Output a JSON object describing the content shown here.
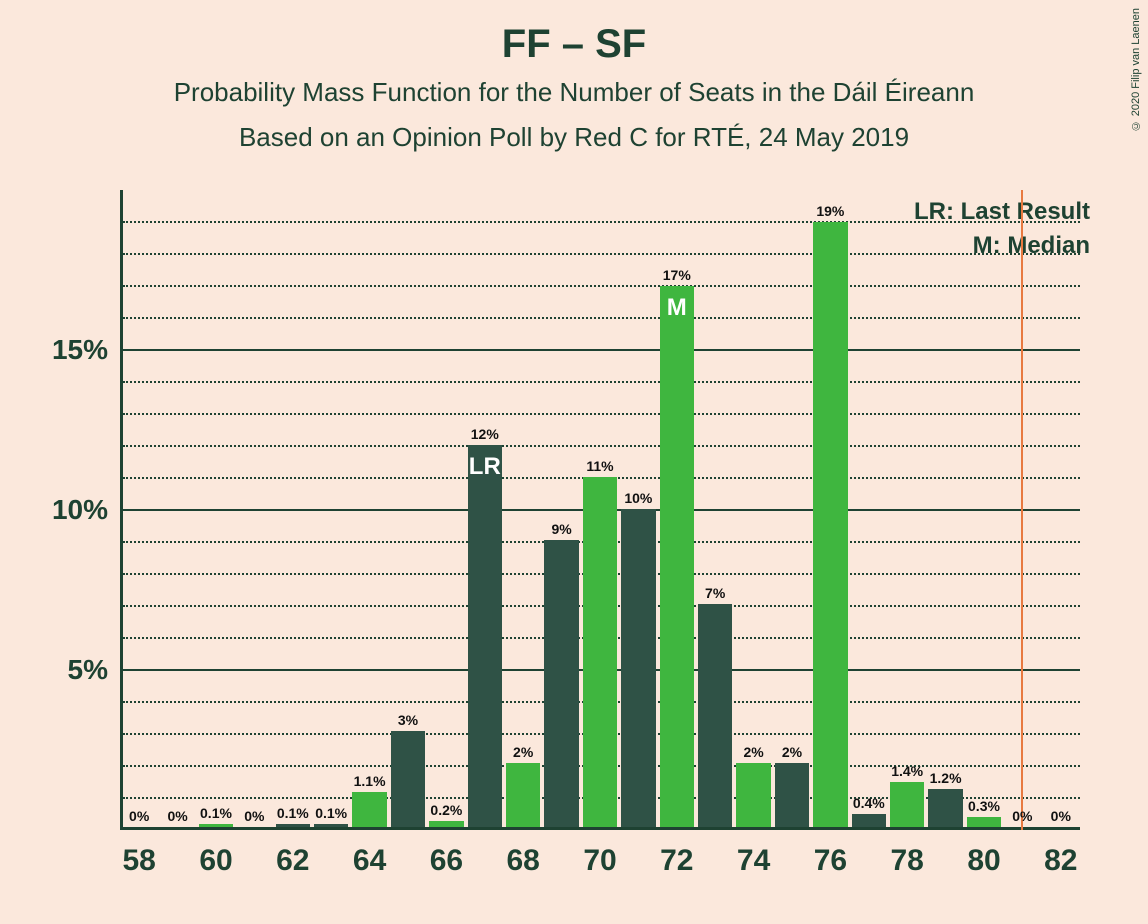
{
  "title": "FF – SF",
  "subtitle": "Probability Mass Function for the Number of Seats in the Dáil Éireann",
  "subtitle2": "Based on an Opinion Poll by Red C for RTÉ, 24 May 2019",
  "copyright": "© 2020 Filip van Laenen",
  "legend": {
    "lr": "LR: Last Result",
    "m": "M: Median"
  },
  "chart": {
    "type": "bar-grouped",
    "background": "#fbe8dc",
    "text_color": "#1e4232",
    "colors": {
      "dark": "#2f5246",
      "green": "#3fb63f",
      "vline": "#e8793f"
    },
    "x": {
      "min": 57.5,
      "max": 82.5,
      "ticks": [
        58,
        60,
        62,
        64,
        66,
        68,
        70,
        72,
        74,
        76,
        78,
        80,
        82
      ]
    },
    "y": {
      "min": 0,
      "max": 20,
      "major_ticks": [
        5,
        10,
        15
      ],
      "minor_step": 1,
      "label_suffix": "%"
    },
    "vline_at": 81,
    "bar_full_width_x": 0.9,
    "marker_LR_at": 67,
    "marker_M_at": 72,
    "bars": [
      {
        "x": 58,
        "series": "dark",
        "value": 0,
        "label": "0%"
      },
      {
        "x": 59,
        "series": "dark",
        "value": 0,
        "label": "0%"
      },
      {
        "x": 60,
        "series": "green",
        "value": 0.1,
        "label": "0.1%"
      },
      {
        "x": 61,
        "series": "dark",
        "value": 0,
        "label": "0%"
      },
      {
        "x": 62,
        "series": "dark",
        "value": 0.1,
        "label": "0.1%"
      },
      {
        "x": 63,
        "series": "dark",
        "value": 0.1,
        "label": "0.1%"
      },
      {
        "x": 64,
        "series": "green",
        "value": 1.1,
        "label": "1.1%"
      },
      {
        "x": 65,
        "series": "dark",
        "value": 3,
        "label": "3%"
      },
      {
        "x": 66,
        "series": "green",
        "value": 0.2,
        "label": "0.2%"
      },
      {
        "x": 67,
        "series": "dark",
        "value": 12,
        "label": "12%",
        "text": "LR"
      },
      {
        "x": 68,
        "series": "green",
        "value": 2,
        "label": "2%"
      },
      {
        "x": 69,
        "series": "dark",
        "value": 9,
        "label": "9%"
      },
      {
        "x": 70,
        "series": "green",
        "value": 11,
        "label": "11%"
      },
      {
        "x": 71,
        "series": "dark",
        "value": 10,
        "label": "10%"
      },
      {
        "x": 72,
        "series": "green",
        "value": 17,
        "label": "17%",
        "text": "M"
      },
      {
        "x": 73,
        "series": "dark",
        "value": 7,
        "label": "7%"
      },
      {
        "x": 74,
        "series": "green",
        "value": 2,
        "label": "2%"
      },
      {
        "x": 75,
        "series": "dark",
        "value": 2,
        "label": "2%"
      },
      {
        "x": 76,
        "series": "green",
        "value": 19,
        "label": "19%"
      },
      {
        "x": 77,
        "series": "dark",
        "value": 0.4,
        "label": "0.4%"
      },
      {
        "x": 78,
        "series": "green",
        "value": 1.4,
        "label": "1.4%"
      },
      {
        "x": 79,
        "series": "dark",
        "value": 1.2,
        "label": "1.2%"
      },
      {
        "x": 80,
        "series": "green",
        "value": 0.3,
        "label": "0.3%"
      },
      {
        "x": 81,
        "series": "dark",
        "value": 0,
        "label": "0%"
      },
      {
        "x": 82,
        "series": "dark",
        "value": 0,
        "label": "0%"
      }
    ]
  }
}
